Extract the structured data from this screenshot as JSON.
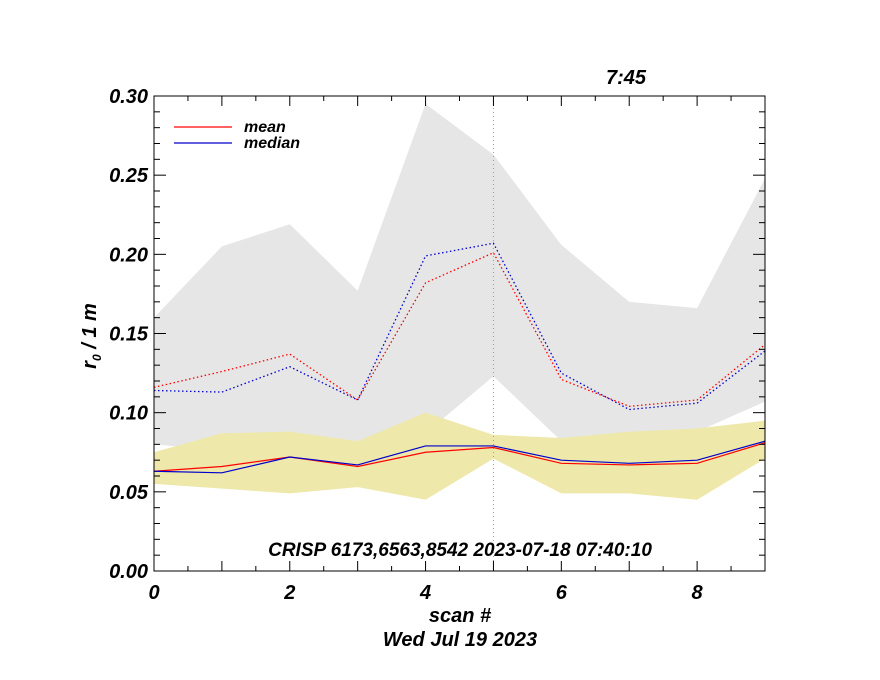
{
  "chart_data": {
    "type": "line",
    "corner_label": "7:45",
    "xlabel": "scan #",
    "date_label": "Wed Jul 19 2023",
    "ylabel_main": "r",
    "ylabel_sub": "0",
    "ylabel_rest": " / 1 m",
    "annotation": "CRISP 6173,6563,8542 2023-07-18 07:40:10",
    "xlim": [
      0,
      9
    ],
    "ylim": [
      0.0,
      0.3
    ],
    "x_ticks": [
      0,
      2,
      4,
      6,
      8
    ],
    "x_tick_labels": [
      "0",
      "2",
      "4",
      "6",
      "8"
    ],
    "y_ticks": [
      0.0,
      0.05,
      0.1,
      0.15,
      0.2,
      0.25,
      0.3
    ],
    "y_tick_labels": [
      "0.00",
      "0.05",
      "0.10",
      "0.15",
      "0.20",
      "0.25",
      "0.30"
    ],
    "marker_x": 5,
    "x": [
      0,
      1,
      2,
      3,
      4,
      5,
      6,
      7,
      8,
      9
    ],
    "series": [
      {
        "name": "mean",
        "legend": true,
        "color": "#ff0000",
        "style": "solid",
        "values": [
          0.063,
          0.066,
          0.072,
          0.066,
          0.075,
          0.078,
          0.068,
          0.067,
          0.068,
          0.081
        ]
      },
      {
        "name": "median",
        "legend": true,
        "color": "#0000cc",
        "style": "solid",
        "values": [
          0.063,
          0.062,
          0.072,
          0.067,
          0.079,
          0.079,
          0.07,
          0.068,
          0.07,
          0.082
        ]
      },
      {
        "name": "mean (upper)",
        "legend": false,
        "color": "#ff0000",
        "style": "dotted",
        "values": [
          0.116,
          0.126,
          0.137,
          0.108,
          0.182,
          0.201,
          0.121,
          0.104,
          0.108,
          0.143
        ]
      },
      {
        "name": "median (upper)",
        "legend": false,
        "color": "#0000cc",
        "style": "dotted",
        "values": [
          0.114,
          0.113,
          0.129,
          0.108,
          0.199,
          0.207,
          0.125,
          0.102,
          0.106,
          0.139
        ]
      }
    ],
    "bands": [
      {
        "name": "upper range",
        "color": "#e6e6e6",
        "upper": [
          0.16,
          0.205,
          0.219,
          0.177,
          0.295,
          0.263,
          0.206,
          0.17,
          0.166,
          0.248
        ],
        "lower": [
          0.08,
          0.076,
          0.078,
          0.079,
          0.087,
          0.123,
          0.082,
          0.085,
          0.088,
          0.107
        ]
      },
      {
        "name": "lower range",
        "color": "#eee8aa",
        "upper": [
          0.075,
          0.087,
          0.088,
          0.082,
          0.1,
          0.086,
          0.084,
          0.088,
          0.09,
          0.095
        ],
        "lower": [
          0.055,
          0.052,
          0.049,
          0.053,
          0.045,
          0.071,
          0.049,
          0.049,
          0.045,
          0.071
        ]
      }
    ]
  }
}
